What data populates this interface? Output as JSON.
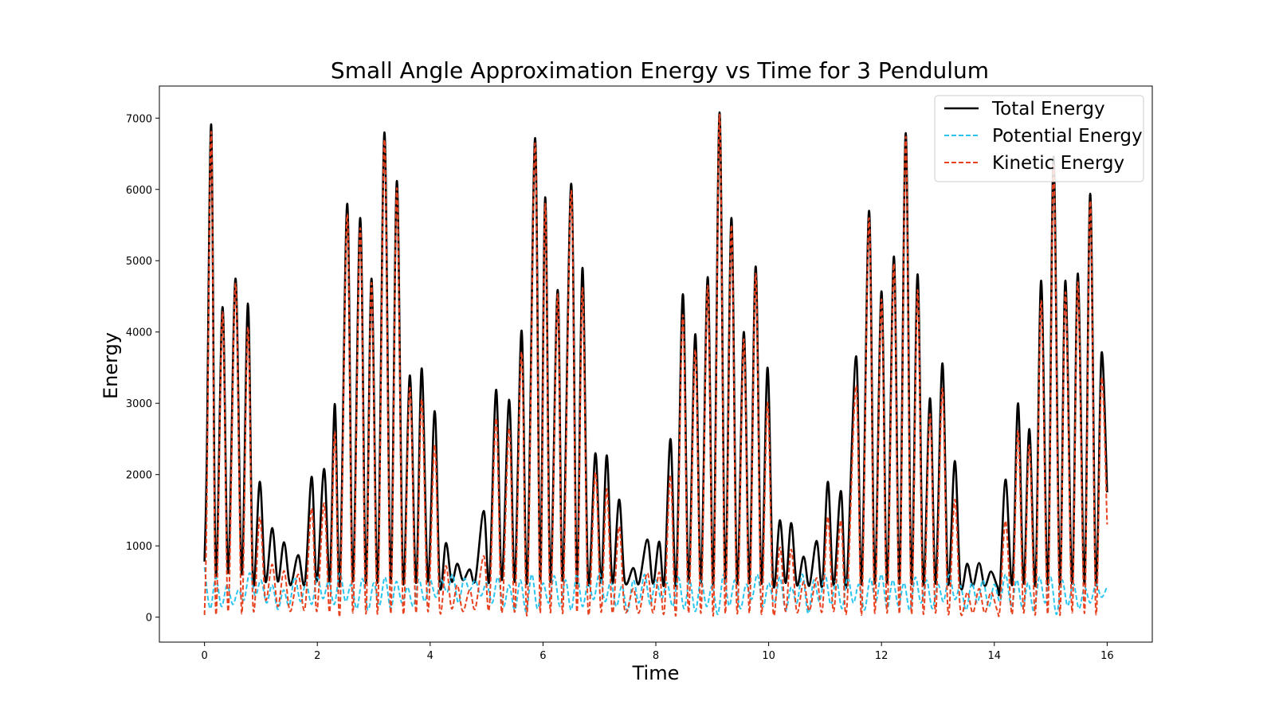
{
  "chart_data": {
    "type": "line",
    "title": "Small Angle Approximation Energy vs Time for 3 Pendulum",
    "xlabel": "Time",
    "ylabel": "Energy",
    "xlim": [
      -0.8,
      16.8
    ],
    "ylim": [
      -350,
      7450
    ],
    "xticks": [
      0,
      2,
      4,
      6,
      8,
      10,
      12,
      14,
      16
    ],
    "yticks": [
      0,
      1000,
      2000,
      3000,
      4000,
      5000,
      6000,
      7000
    ],
    "grid": false,
    "legend_position": "top-right",
    "series": [
      {
        "name": "Total Energy",
        "color": "#000000",
        "style": "solid",
        "x": [
          0,
          0.04,
          0.12,
          0.2,
          0.32,
          0.42,
          0.55,
          0.66,
          0.77,
          0.86,
          0.98,
          1.08,
          1.2,
          1.3,
          1.41,
          1.52,
          1.66,
          1.78,
          1.9,
          1.99,
          2.12,
          2.22,
          2.31,
          2.4,
          2.53,
          2.63,
          2.76,
          2.86,
          2.96,
          3.07,
          3.19,
          3.3,
          3.41,
          3.52,
          3.64,
          3.75,
          3.85,
          3.96,
          4.08,
          4.17,
          4.28,
          4.38,
          4.48,
          4.58,
          4.7,
          4.8,
          4.95,
          5.05,
          5.17,
          5.27,
          5.4,
          5.5,
          5.62,
          5.72,
          5.86,
          5.95,
          6.04,
          6.13,
          6.26,
          6.35,
          6.5,
          6.6,
          6.7,
          6.8,
          6.93,
          7.03,
          7.13,
          7.23,
          7.35,
          7.45,
          7.6,
          7.7,
          7.85,
          7.95,
          8.06,
          8.15,
          8.26,
          8.36,
          8.48,
          8.58,
          8.7,
          8.8,
          8.92,
          9.02,
          9.13,
          9.23,
          9.34,
          9.44,
          9.56,
          9.66,
          9.77,
          9.87,
          9.98,
          10.08,
          10.2,
          10.3,
          10.4,
          10.5,
          10.62,
          10.72,
          10.85,
          10.95,
          11.05,
          11.15,
          11.28,
          11.38,
          11.55,
          11.65,
          11.78,
          11.88,
          12.0,
          12.1,
          12.22,
          12.32,
          12.43,
          12.53,
          12.64,
          12.74,
          12.86,
          12.96,
          13.08,
          13.18,
          13.3,
          13.4,
          13.52,
          13.62,
          13.73,
          13.83,
          13.94,
          14.05,
          14.1,
          14.2,
          14.32,
          14.42,
          14.52,
          14.62,
          14.73,
          14.83,
          14.95,
          15.05,
          15.16,
          15.26,
          15.38,
          15.48,
          15.6,
          15.7,
          15.8,
          15.9,
          16.0
        ],
        "y": [
          780,
          2200,
          6900,
          600,
          4350,
          620,
          4750,
          600,
          4400,
          500,
          1900,
          500,
          1250,
          500,
          1050,
          450,
          870,
          480,
          1970,
          500,
          2080,
          500,
          2990,
          480,
          5800,
          500,
          5600,
          480,
          4750,
          500,
          6800,
          480,
          6120,
          500,
          3390,
          480,
          3490,
          500,
          2890,
          450,
          1040,
          500,
          750,
          520,
          670,
          520,
          1490,
          520,
          3190,
          520,
          3050,
          500,
          4020,
          500,
          6720,
          520,
          5890,
          500,
          4590,
          520,
          6080,
          480,
          4900,
          500,
          2300,
          480,
          2270,
          480,
          1650,
          500,
          690,
          470,
          1090,
          470,
          1060,
          480,
          2500,
          470,
          4530,
          480,
          3970,
          480,
          4770,
          480,
          7080,
          480,
          5600,
          480,
          4000,
          480,
          4920,
          480,
          3500,
          480,
          1360,
          480,
          1320,
          450,
          850,
          440,
          1070,
          440,
          1900,
          450,
          1770,
          450,
          3660,
          480,
          5700,
          480,
          4570,
          480,
          5060,
          480,
          6790,
          480,
          4810,
          470,
          3070,
          470,
          3560,
          470,
          2190,
          450,
          750,
          440,
          760,
          440,
          640,
          440,
          420,
          1930,
          460,
          3000,
          470,
          2640,
          470,
          4720,
          470,
          6460,
          470,
          4720,
          470,
          4820,
          470,
          5940,
          470,
          3700,
          1750
        ]
      },
      {
        "name": "Potential Energy",
        "color": "#29c5ef",
        "style": "dashed",
        "x": [
          0,
          0.1,
          0.2,
          0.3,
          0.4,
          0.5,
          0.6,
          0.7,
          0.8,
          0.9,
          1.0,
          1.1,
          1.2,
          1.3,
          1.4,
          1.5,
          1.6,
          1.7,
          1.8,
          1.9,
          2.0,
          2.1,
          2.2,
          2.3,
          2.4,
          2.5,
          2.6,
          2.7,
          2.8,
          2.9,
          3.0,
          3.1,
          3.2,
          3.3,
          3.4,
          3.5,
          3.6,
          3.7,
          3.8,
          3.9,
          4.0,
          4.1,
          4.2,
          4.3,
          4.4,
          4.5,
          4.6,
          4.7,
          4.8,
          4.9,
          5.0,
          5.1,
          5.2,
          5.3,
          5.4,
          5.5,
          5.6,
          5.7,
          5.8,
          5.9,
          6.0,
          6.1,
          6.2,
          6.3,
          6.4,
          6.5,
          6.6,
          6.7,
          6.8,
          6.9,
          7.0,
          7.1,
          7.2,
          7.3,
          7.4,
          7.5,
          7.6,
          7.7,
          7.8,
          7.9,
          8.0,
          8.1,
          8.2,
          8.3,
          8.4,
          8.5,
          8.6,
          8.7,
          8.8,
          8.9,
          9.0,
          9.1,
          9.2,
          9.3,
          9.4,
          9.5,
          9.6,
          9.7,
          9.8,
          9.9,
          10.0,
          10.1,
          10.2,
          10.3,
          10.4,
          10.5,
          10.6,
          10.7,
          10.8,
          10.9,
          11.0,
          11.1,
          11.2,
          11.3,
          11.4,
          11.5,
          11.6,
          11.7,
          11.8,
          11.9,
          12.0,
          12.1,
          12.2,
          12.3,
          12.4,
          12.5,
          12.6,
          12.7,
          12.8,
          12.9,
          13.0,
          13.1,
          13.2,
          13.3,
          13.4,
          13.5,
          13.6,
          13.7,
          13.8,
          13.9,
          14.0,
          14.1,
          14.2,
          14.3,
          14.4,
          14.5,
          14.6,
          14.7,
          14.8,
          14.9,
          15.0,
          15.1,
          15.2,
          15.3,
          15.4,
          15.5,
          15.6,
          15.7,
          15.8,
          15.9,
          16.0
        ],
        "y": [
          700,
          120,
          560,
          150,
          450,
          180,
          380,
          240,
          620,
          300,
          520,
          200,
          450,
          110,
          380,
          160,
          560,
          220,
          480,
          180,
          560,
          260,
          500,
          180,
          620,
          220,
          460,
          120,
          540,
          100,
          480,
          160,
          560,
          120,
          500,
          200,
          420,
          150,
          530,
          220,
          520,
          280,
          520,
          350,
          600,
          200,
          540,
          380,
          520,
          300,
          480,
          200,
          560,
          150,
          450,
          100,
          520,
          80,
          600,
          120,
          480,
          200,
          580,
          150,
          520,
          100,
          600,
          150,
          480,
          250,
          620,
          220,
          500,
          150,
          440,
          80,
          520,
          200,
          600,
          180,
          520,
          250,
          480,
          150,
          560,
          120,
          520,
          80,
          520,
          150,
          440,
          40,
          600,
          160,
          520,
          120,
          460,
          250,
          600,
          150,
          480,
          200,
          560,
          100,
          420,
          200,
          600,
          50,
          520,
          220,
          600,
          180,
          520,
          120,
          560,
          200,
          460,
          100,
          540,
          220,
          600,
          120,
          520,
          160,
          480,
          100,
          560,
          200,
          520,
          120,
          460,
          220,
          600,
          250,
          440,
          100,
          480,
          200,
          520,
          140,
          460,
          220,
          600,
          160,
          520,
          120,
          480,
          80,
          560,
          200,
          560,
          40,
          520,
          160,
          480,
          120,
          420,
          200,
          460,
          280,
          430
        ]
      },
      {
        "name": "Kinetic Energy",
        "color": "#e8411e",
        "style": "dashed",
        "x": [
          0,
          0.04,
          0.12,
          0.2,
          0.32,
          0.42,
          0.55,
          0.66,
          0.77,
          0.86,
          0.98,
          1.08,
          1.2,
          1.3,
          1.41,
          1.52,
          1.66,
          1.78,
          1.9,
          1.99,
          2.12,
          2.22,
          2.31,
          2.4,
          2.53,
          2.63,
          2.76,
          2.86,
          2.96,
          3.07,
          3.19,
          3.3,
          3.41,
          3.52,
          3.64,
          3.75,
          3.85,
          3.96,
          4.08,
          4.17,
          4.28,
          4.38,
          4.48,
          4.58,
          4.7,
          4.8,
          4.95,
          5.05,
          5.17,
          5.27,
          5.4,
          5.5,
          5.62,
          5.72,
          5.86,
          5.95,
          6.04,
          6.13,
          6.26,
          6.35,
          6.5,
          6.6,
          6.7,
          6.8,
          6.93,
          7.03,
          7.13,
          7.23,
          7.35,
          7.45,
          7.6,
          7.7,
          7.85,
          7.95,
          8.06,
          8.15,
          8.26,
          8.36,
          8.48,
          8.58,
          8.7,
          8.8,
          8.92,
          9.02,
          9.13,
          9.23,
          9.34,
          9.44,
          9.56,
          9.66,
          9.77,
          9.87,
          9.98,
          10.08,
          10.2,
          10.3,
          10.4,
          10.5,
          10.62,
          10.72,
          10.85,
          10.95,
          11.05,
          11.15,
          11.28,
          11.38,
          11.55,
          11.65,
          11.78,
          11.88,
          12.0,
          12.1,
          12.22,
          12.32,
          12.43,
          12.53,
          12.64,
          12.74,
          12.86,
          12.96,
          13.08,
          13.18,
          13.3,
          13.4,
          13.52,
          13.62,
          13.73,
          13.83,
          13.94,
          14.05,
          14.1,
          14.2,
          14.32,
          14.42,
          14.52,
          14.62,
          14.73,
          14.83,
          14.95,
          15.05,
          15.16,
          15.26,
          15.38,
          15.48,
          15.6,
          15.7,
          15.8,
          15.9,
          16.0
        ],
        "y": [
          30,
          1500,
          6800,
          60,
          4280,
          80,
          4680,
          50,
          4070,
          150,
          1400,
          250,
          740,
          150,
          650,
          80,
          600,
          120,
          1530,
          80,
          1600,
          80,
          2600,
          60,
          5650,
          60,
          5460,
          50,
          4690,
          60,
          6700,
          50,
          6020,
          80,
          3220,
          60,
          3060,
          80,
          2420,
          100,
          720,
          120,
          450,
          80,
          380,
          120,
          860,
          150,
          2790,
          60,
          2650,
          80,
          3720,
          60,
          6650,
          60,
          5800,
          70,
          4530,
          60,
          5980,
          80,
          4620,
          80,
          2030,
          70,
          1800,
          60,
          1270,
          90,
          400,
          60,
          620,
          60,
          630,
          80,
          1990,
          60,
          4240,
          60,
          3750,
          60,
          4650,
          40,
          7050,
          60,
          5500,
          60,
          3900,
          60,
          4820,
          60,
          3010,
          80,
          980,
          80,
          950,
          70,
          500,
          90,
          550,
          90,
          1410,
          80,
          1360,
          80,
          3250,
          60,
          5600,
          60,
          4460,
          60,
          4960,
          60,
          6740,
          60,
          4590,
          60,
          2850,
          60,
          3210,
          60,
          1650,
          80,
          350,
          60,
          400,
          60,
          350,
          100,
          120,
          1350,
          60,
          2620,
          60,
          2410,
          60,
          4440,
          60,
          6340,
          40,
          4560,
          60,
          4700,
          60,
          5840,
          70,
          3350,
          1300
        ]
      }
    ]
  }
}
